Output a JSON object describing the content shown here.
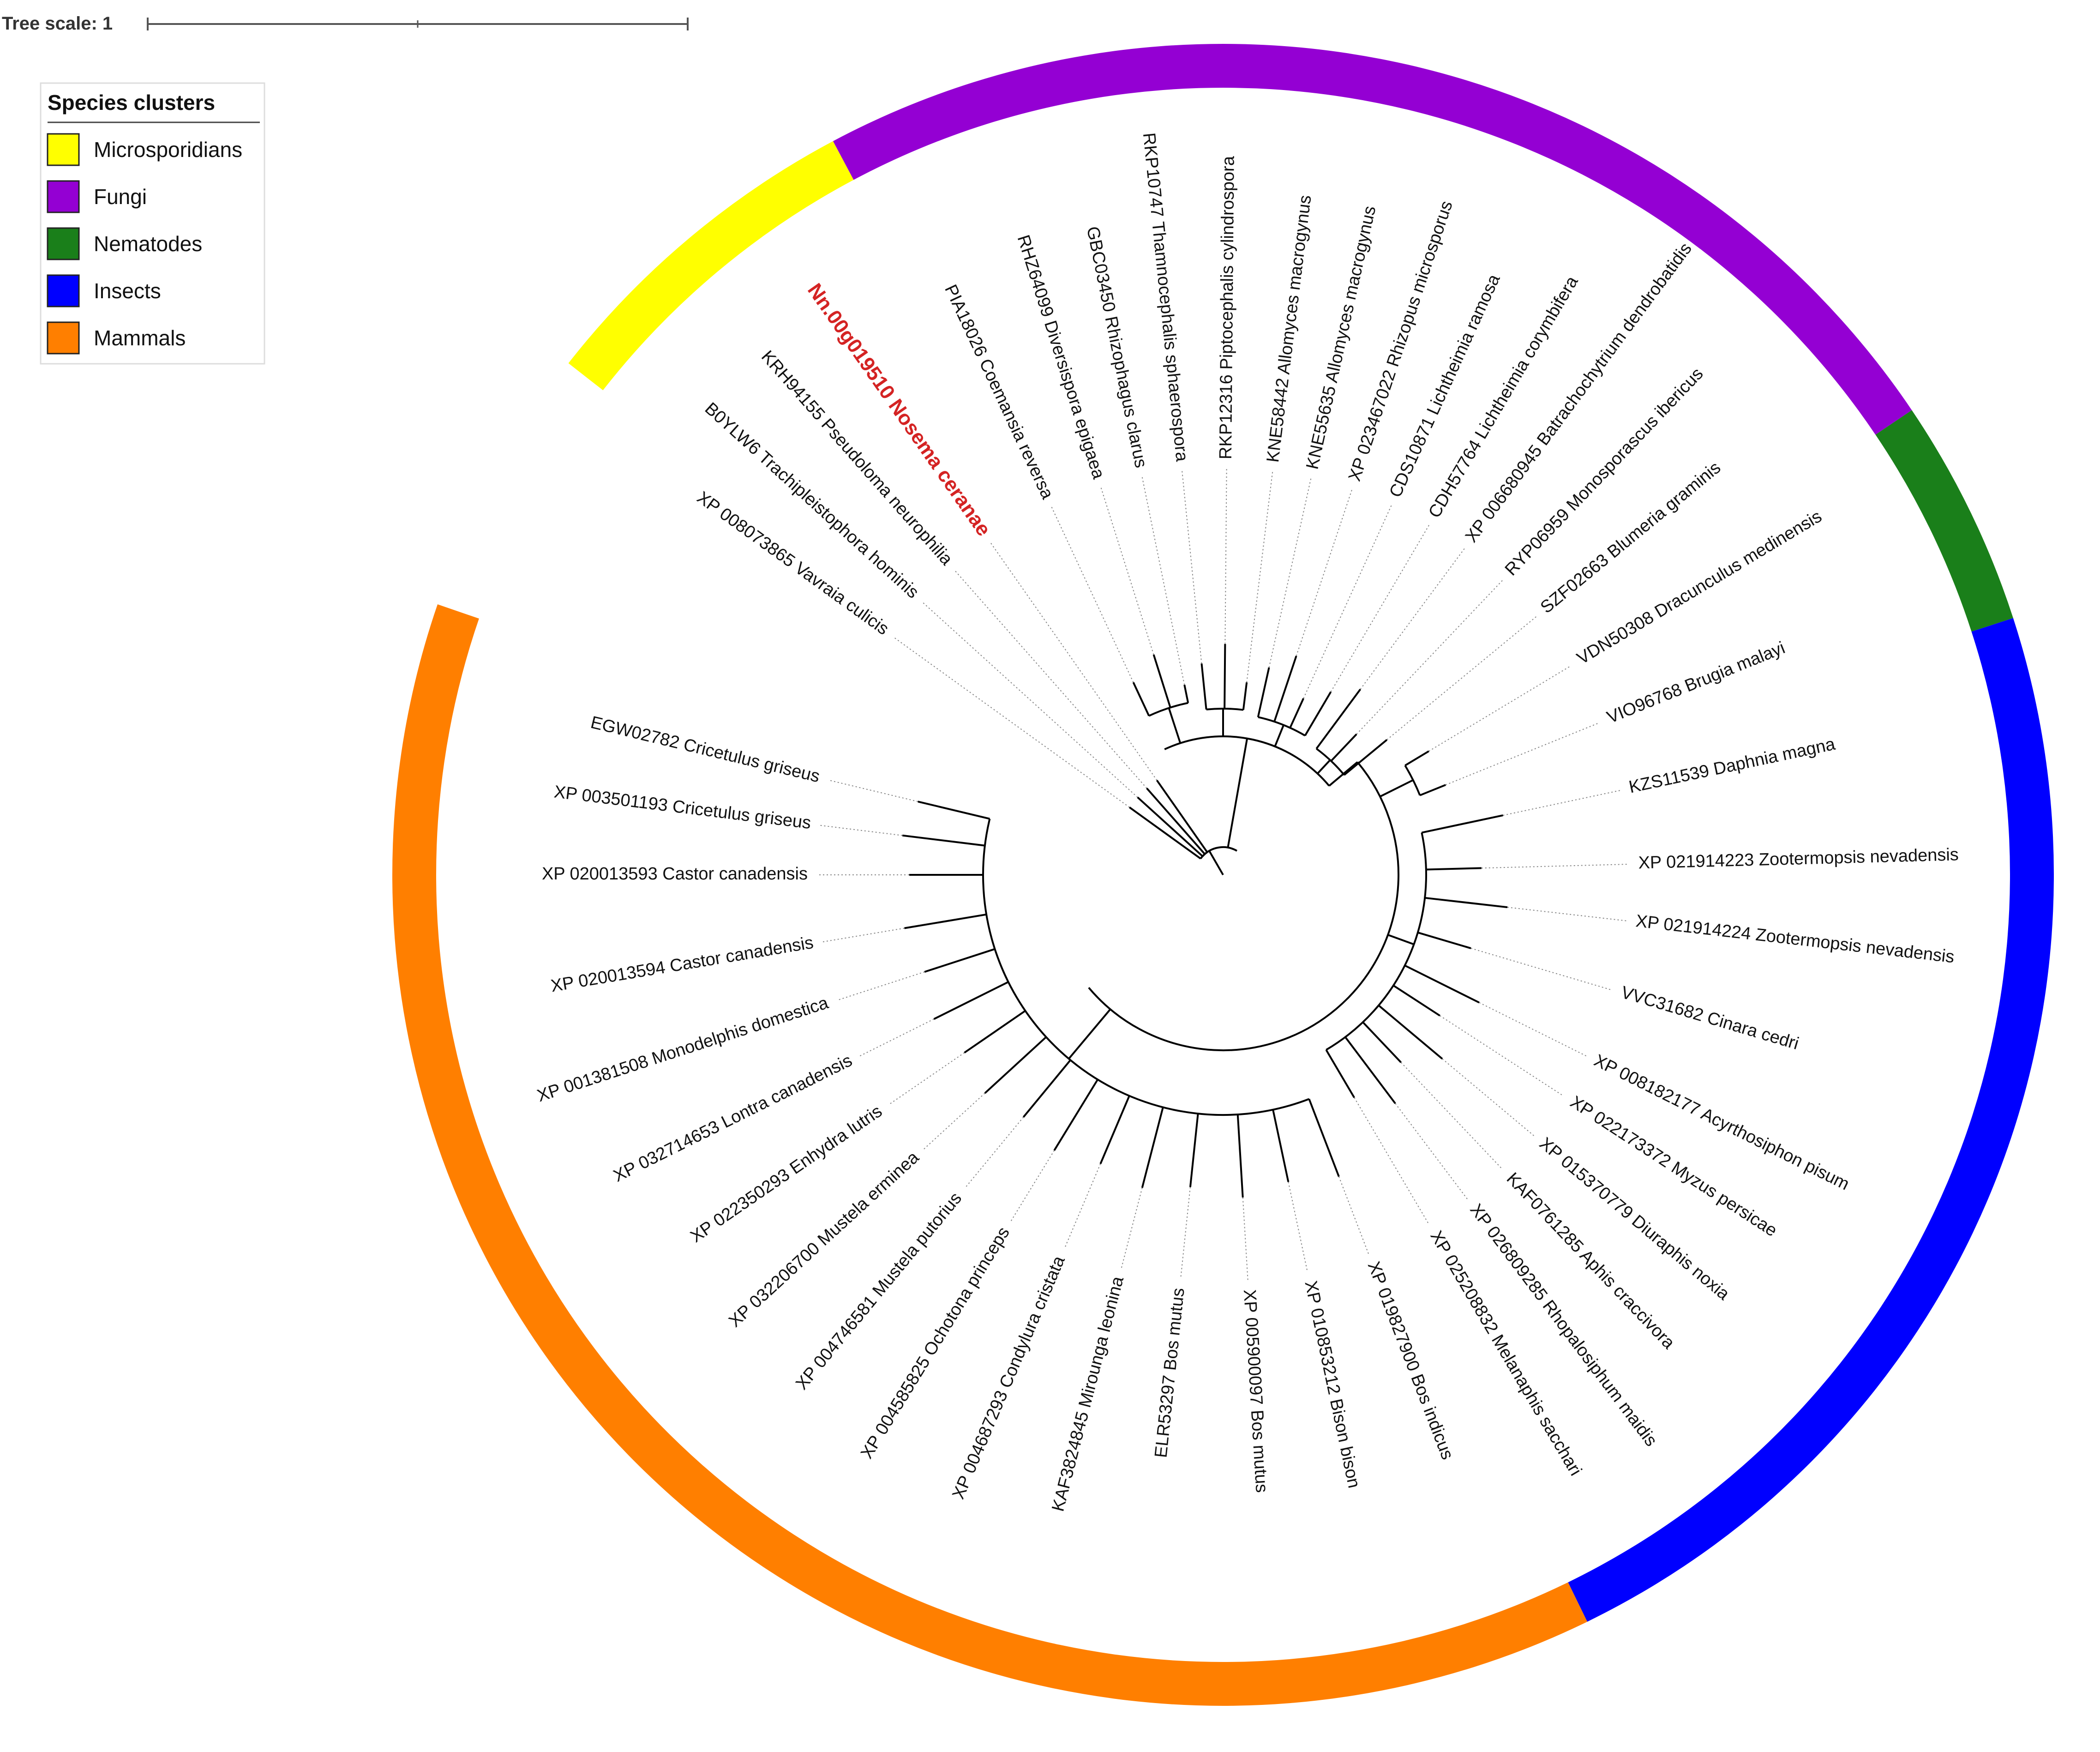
{
  "tree_scale": {
    "label": "Tree scale: 1"
  },
  "legend": {
    "title": "Species clusters",
    "items": [
      {
        "label": "Microsporidians",
        "color": "#ffff00"
      },
      {
        "label": "Fungi",
        "color": "#9400d3"
      },
      {
        "label": "Nematodes",
        "color": "#1a7f1a"
      },
      {
        "label": "Insects",
        "color": "#0000ff"
      },
      {
        "label": "Mammals",
        "color": "#ff7f00"
      }
    ]
  },
  "tree": {
    "leaves": [
      {
        "label": "Nn.00g019510 Nosema ceranae",
        "cluster": "Microsporidians",
        "highlight": true
      },
      {
        "label": "KRH94155 Pseudoloma neurophilia",
        "cluster": "Microsporidians"
      },
      {
        "label": "B0YLW6 Trachipleistophora hominis",
        "cluster": "Microsporidians"
      },
      {
        "label": "XP 008073865 Vavraia culicis",
        "cluster": "Microsporidians"
      },
      {
        "label": "PIA18026 Coemansia reversa",
        "cluster": "Fungi"
      },
      {
        "label": "RHZ64099 Diversispora epigaea",
        "cluster": "Fungi"
      },
      {
        "label": "GBC03450 Rhizophagus clarus",
        "cluster": "Fungi"
      },
      {
        "label": "RKP10747 Thamnocephalis sphaerospora",
        "cluster": "Fungi"
      },
      {
        "label": "RKP12316 Piptocephalis cylindrospora",
        "cluster": "Fungi"
      },
      {
        "label": "KNE58442 Allomyces macrogynus",
        "cluster": "Fungi"
      },
      {
        "label": "KNE55635 Allomyces macrogynus",
        "cluster": "Fungi"
      },
      {
        "label": "XP 023467022 Rhizopus microsporus",
        "cluster": "Fungi"
      },
      {
        "label": "CDS10871 Lichtheimia ramosa",
        "cluster": "Fungi"
      },
      {
        "label": "CDH57764 Lichtheimia corymbifera",
        "cluster": "Fungi"
      },
      {
        "label": "XP 006680945 Batrachochytrium dendrobatidis",
        "cluster": "Fungi"
      },
      {
        "label": "RYP06959 Monosporascus ibericus",
        "cluster": "Fungi"
      },
      {
        "label": "SZF02663 Blumeria graminis",
        "cluster": "Fungi"
      },
      {
        "label": "VDN50308 Dracunculus medinensis",
        "cluster": "Nematodes"
      },
      {
        "label": "VIO96768 Brugia malayi",
        "cluster": "Nematodes"
      },
      {
        "label": "KZS11539 Daphnia magna",
        "cluster": "Insects"
      },
      {
        "label": "XP 021914223 Zootermopsis nevadensis",
        "cluster": "Insects"
      },
      {
        "label": "XP 021914224 Zootermopsis nevadensis",
        "cluster": "Insects"
      },
      {
        "label": "VVC31682 Cinara cedri",
        "cluster": "Insects"
      },
      {
        "label": "XP 008182177 Acyrthosiphon pisum",
        "cluster": "Insects"
      },
      {
        "label": "XP 022173372 Myzus persicae",
        "cluster": "Insects"
      },
      {
        "label": "XP 015370779 Diuraphis noxia",
        "cluster": "Insects"
      },
      {
        "label": "KAF0761285 Aphis craccivora",
        "cluster": "Insects"
      },
      {
        "label": "XP 026809285 Rhopalosiphum maidis",
        "cluster": "Insects"
      },
      {
        "label": "XP 025208832 Melanaphis sacchari",
        "cluster": "Insects"
      },
      {
        "label": "XP 019827900 Bos indicus",
        "cluster": "Mammals"
      },
      {
        "label": "XP 010853212 Bison bison",
        "cluster": "Mammals"
      },
      {
        "label": "XP 005900097 Bos mutus",
        "cluster": "Mammals"
      },
      {
        "label": "ELR53297 Bos mutus",
        "cluster": "Mammals"
      },
      {
        "label": "KAF3824845 Mirounga leonina",
        "cluster": "Mammals"
      },
      {
        "label": "XP 004687293 Condylura cristata",
        "cluster": "Mammals"
      },
      {
        "label": "XP 004585825 Ochotona princeps",
        "cluster": "Mammals"
      },
      {
        "label": "XP 004746581 Mustela putorius",
        "cluster": "Mammals"
      },
      {
        "label": "XP 032206700 Mustela erminea",
        "cluster": "Mammals"
      },
      {
        "label": "XP 022350293 Enhydra lutris",
        "cluster": "Mammals"
      },
      {
        "label": "XP 032714653 Lontra canadensis",
        "cluster": "Mammals"
      },
      {
        "label": "XP 001381508 Monodelphis domestica",
        "cluster": "Mammals"
      },
      {
        "label": "XP 020013594 Castor canadensis",
        "cluster": "Mammals"
      },
      {
        "label": "XP 020013593 Castor canadensis",
        "cluster": "Mammals"
      },
      {
        "label": "XP 003501193 Cricetulus griseus",
        "cluster": "Mammals"
      },
      {
        "label": "EGW02782 Cricetulus griseus",
        "cluster": "Mammals"
      }
    ]
  }
}
